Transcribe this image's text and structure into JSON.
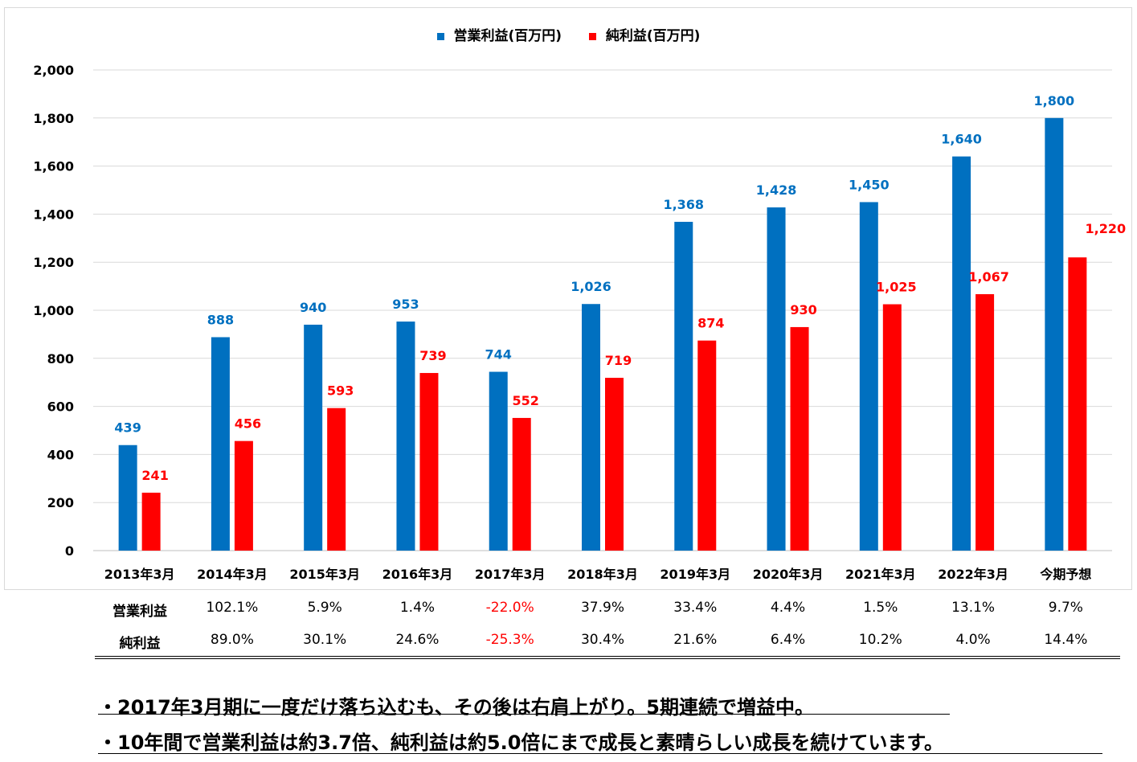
{
  "chart_data": {
    "type": "bar",
    "title": "",
    "xlabel": "",
    "ylabel": "",
    "ylim": [
      0,
      2000
    ],
    "yticks": [
      0,
      200,
      400,
      600,
      800,
      1000,
      1200,
      1400,
      1600,
      1800,
      2000
    ],
    "ytick_labels": [
      "0",
      "200",
      "400",
      "600",
      "800",
      "1,000",
      "1,200",
      "1,400",
      "1,600",
      "1,800",
      "2,000"
    ],
    "grid": true,
    "legend_position": "top-center",
    "categories": [
      "2013年3月",
      "2014年3月",
      "2015年3月",
      "2016年3月",
      "2017年3月",
      "2018年3月",
      "2019年3月",
      "2020年3月",
      "2021年3月",
      "2022年3月",
      "今期予想"
    ],
    "series": [
      {
        "name": "営業利益(百万円)",
        "color": "#0070c0",
        "values": [
          439,
          888,
          940,
          953,
          744,
          1026,
          1368,
          1428,
          1450,
          1640,
          1800
        ],
        "labels": [
          "439",
          "888",
          "940",
          "953",
          "744",
          "1,026",
          "1,368",
          "1,428",
          "1,450",
          "1,640",
          "1,800"
        ]
      },
      {
        "name": "純利益(百万円)",
        "color": "#ff0000",
        "values": [
          241,
          456,
          593,
          739,
          552,
          719,
          874,
          930,
          1025,
          1067,
          1220
        ],
        "labels": [
          "241",
          "456",
          "593",
          "739",
          "552",
          "719",
          "874",
          "930",
          "1,025",
          "1,067",
          "1,220"
        ]
      }
    ]
  },
  "growth_table": {
    "rows": [
      {
        "label": "営業利益",
        "values": [
          "102.1%",
          "5.9%",
          "1.4%",
          "-22.0%",
          "37.9%",
          "33.4%",
          "4.4%",
          "1.5%",
          "13.1%",
          "9.7%"
        ]
      },
      {
        "label": "純利益",
        "values": [
          "89.0%",
          "30.1%",
          "24.6%",
          "-25.3%",
          "30.4%",
          "21.6%",
          "6.4%",
          "10.2%",
          "4.0%",
          "14.4%"
        ]
      }
    ],
    "negative_color": "#ff0000"
  },
  "notes": [
    "・2017年3月期に一度だけ落ち込むも、その後は右肩上がり。5期連続で増益中。",
    "・10年間で営業利益は約3.7倍、純利益は約5.0倍にまで成長と素晴らしい成長を続けています。"
  ]
}
